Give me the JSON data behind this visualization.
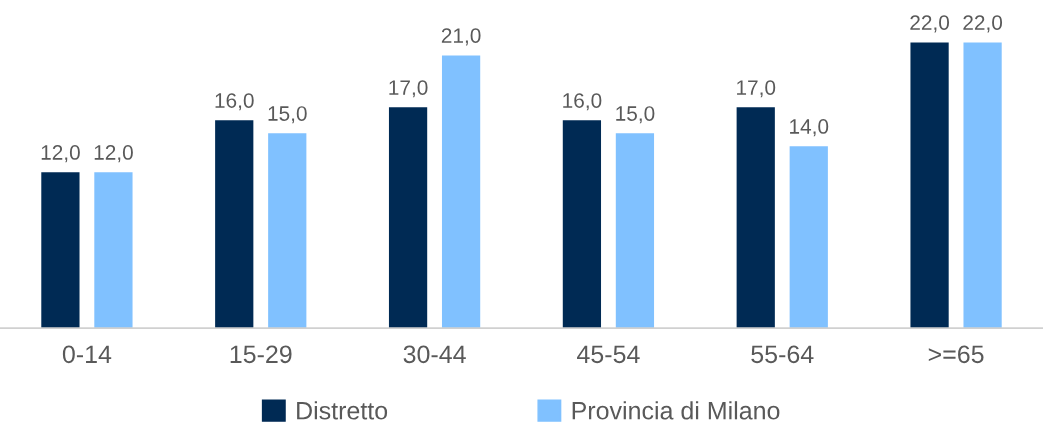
{
  "chart_data": {
    "type": "bar",
    "categories": [
      "0-14",
      "15-29",
      "30-44",
      "45-54",
      "55-64",
      ">=65"
    ],
    "series": [
      {
        "name": "Distretto",
        "color": "#002a54",
        "values": [
          12,
          16,
          17,
          16,
          17,
          22
        ],
        "value_labels": [
          "12,0",
          "16,0",
          "17,0",
          "16,0",
          "17,0",
          "22,0"
        ]
      },
      {
        "name": "Provincia di Milano",
        "color": "#80c1ff",
        "values": [
          12,
          15,
          21,
          15,
          14,
          22
        ],
        "value_labels": [
          "12,0",
          "15,0",
          "21,0",
          "15,0",
          "14,0",
          "22,0"
        ]
      }
    ],
    "tick_labels": "x",
    "grid": false,
    "legend": "bottom"
  }
}
